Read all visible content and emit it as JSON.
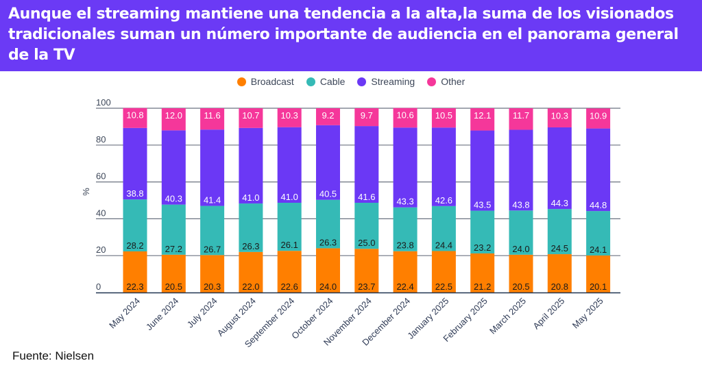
{
  "header": {
    "title": "Aunque el streaming mantiene una tendencia a la alta,la suma de los visionados tradicionales suman un número importante de audiencia en el panorama general de la TV",
    "background_color": "#6b3af5"
  },
  "footer": {
    "source": "Fuente: Nielsen"
  },
  "chart_data": {
    "type": "bar",
    "stacked": true,
    "title": "Aunque el streaming mantiene una tendencia a la alta,la suma de los visionados tradicionales suman un número importante de audiencia en el panorama general de la TV",
    "xlabel": "",
    "ylabel": "%",
    "ylim": [
      0,
      100
    ],
    "yticks": [
      0,
      20,
      40,
      60,
      80,
      100
    ],
    "grid": true,
    "legend_position": "top-center",
    "categories": [
      "May 2024",
      "June 2024",
      "July 2024",
      "August 2024",
      "September 2024",
      "October 2024",
      "November 2024",
      "December 2024",
      "January 2025",
      "February 2025",
      "March 2025",
      "April 2025",
      "May 2025"
    ],
    "series": [
      {
        "name": "Broadcast",
        "color": "#ff7f00",
        "label_color": "#1a1a1a",
        "values": [
          22.3,
          20.5,
          20.3,
          22.0,
          22.6,
          24.0,
          23.7,
          22.4,
          22.5,
          21.2,
          20.5,
          20.8,
          20.1
        ]
      },
      {
        "name": "Cable",
        "color": "#35bab6",
        "label_color": "#1a1a1a",
        "values": [
          28.2,
          27.2,
          26.7,
          26.3,
          26.1,
          26.3,
          25.0,
          23.8,
          24.4,
          23.2,
          24.0,
          24.5,
          24.1
        ]
      },
      {
        "name": "Streaming",
        "color": "#6b38f5",
        "label_color": "#ffffff",
        "values": [
          38.8,
          40.3,
          41.4,
          41.0,
          41.0,
          40.5,
          41.6,
          43.3,
          42.6,
          43.5,
          43.8,
          44.3,
          44.8
        ]
      },
      {
        "name": "Other",
        "color": "#f5379a",
        "label_color": "#ffffff",
        "values": [
          10.8,
          12.0,
          11.6,
          10.7,
          10.3,
          9.2,
          9.7,
          10.6,
          10.5,
          12.1,
          11.7,
          10.3,
          10.9
        ]
      }
    ]
  }
}
